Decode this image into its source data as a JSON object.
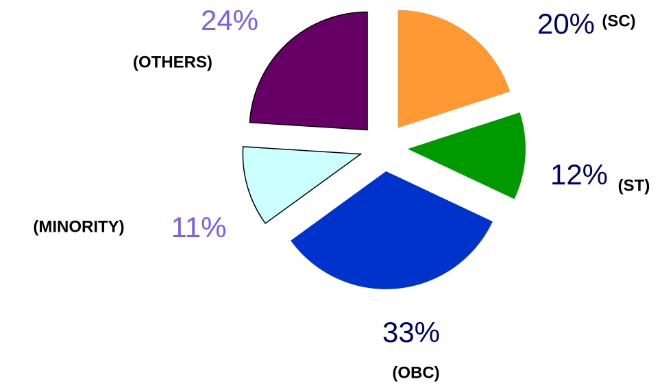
{
  "chart_data": {
    "type": "pie",
    "categories": [
      "(SC)",
      "(ST)",
      "(OBC)",
      "(MINORITY)",
      "(OTHERS)"
    ],
    "values": [
      20,
      12,
      33,
      11,
      24
    ],
    "value_labels": [
      "20%",
      "12%",
      "33%",
      "11%",
      "24%"
    ],
    "colors": [
      "#ff9933",
      "#009900",
      "#0033cc",
      "#ccffff",
      "#660066"
    ],
    "value_label_colors": [
      "#000066",
      "#000066",
      "#000066",
      "#7a5cff",
      "#7a5cff"
    ]
  }
}
